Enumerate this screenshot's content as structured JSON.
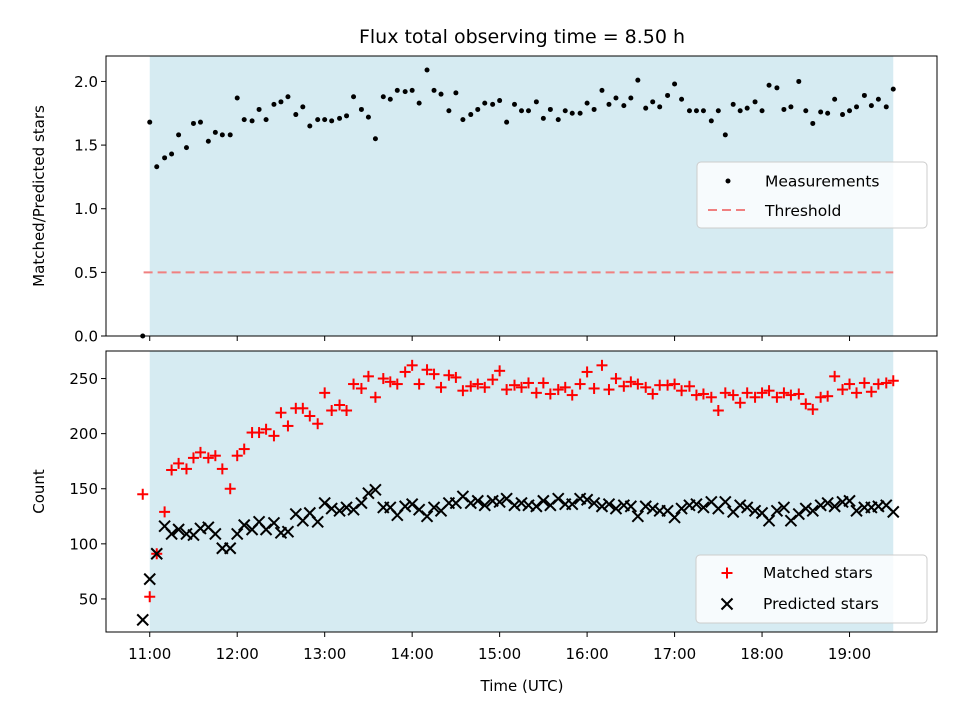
{
  "figure": {
    "title": "Flux total observing time = 8.50 h",
    "xlabel": "Time (UTC)",
    "x_ticks": [
      "11:00",
      "12:00",
      "13:00",
      "14:00",
      "15:00",
      "16:00",
      "17:00",
      "18:00",
      "19:00"
    ]
  },
  "colors": {
    "span": "#add8e6",
    "measurement": "#000000",
    "threshold": "#f08080",
    "matched": "#ff0000",
    "predicted": "#000000"
  },
  "chart_data": [
    {
      "type": "scatter",
      "panel": "top",
      "ylabel": "Matched/Predicted stars",
      "xlim": [
        10.5,
        20.0
      ],
      "ylim": [
        0.0,
        2.2
      ],
      "y_ticks": [
        "0.0",
        "0.5",
        "1.0",
        "1.5",
        "2.0"
      ],
      "shaded_span": [
        11.0,
        19.5
      ],
      "threshold": {
        "name": "Threshold",
        "y": 0.5,
        "x_range": [
          10.93,
          19.5
        ]
      },
      "legend": {
        "placement": "center-right",
        "entries": [
          "Measurements",
          "Threshold"
        ]
      },
      "series": [
        {
          "name": "Measurements",
          "x": [
            10.92,
            11.0,
            11.08,
            11.17,
            11.25,
            11.33,
            11.42,
            11.5,
            11.58,
            11.67,
            11.75,
            11.83,
            11.92,
            12.0,
            12.08,
            12.17,
            12.25,
            12.33,
            12.42,
            12.5,
            12.58,
            12.67,
            12.75,
            12.83,
            12.92,
            13.0,
            13.08,
            13.17,
            13.25,
            13.33,
            13.42,
            13.5,
            13.58,
            13.67,
            13.75,
            13.83,
            13.92,
            14.0,
            14.08,
            14.17,
            14.25,
            14.33,
            14.42,
            14.5,
            14.58,
            14.67,
            14.75,
            14.83,
            14.92,
            15.0,
            15.08,
            15.17,
            15.25,
            15.33,
            15.42,
            15.5,
            15.58,
            15.67,
            15.75,
            15.83,
            15.92,
            16.0,
            16.08,
            16.17,
            16.25,
            16.33,
            16.42,
            16.5,
            16.58,
            16.67,
            16.75,
            16.83,
            16.92,
            17.0,
            17.08,
            17.17,
            17.25,
            17.33,
            17.42,
            17.5,
            17.58,
            17.67,
            17.75,
            17.83,
            17.92,
            18.0,
            18.08,
            18.17,
            18.25,
            18.33,
            18.42,
            18.5,
            18.58,
            18.67,
            18.75,
            18.83,
            18.92,
            19.0,
            19.08,
            19.17,
            19.25,
            19.33,
            19.42,
            19.5
          ],
          "y": [
            0.0,
            1.68,
            1.33,
            1.4,
            1.43,
            1.58,
            1.48,
            1.67,
            1.68,
            1.53,
            1.6,
            1.58,
            1.58,
            1.87,
            1.7,
            1.69,
            1.78,
            1.7,
            1.82,
            1.84,
            1.88,
            1.74,
            1.8,
            1.65,
            1.7,
            1.7,
            1.69,
            1.71,
            1.73,
            1.88,
            1.78,
            1.72,
            1.55,
            1.88,
            1.86,
            1.93,
            1.92,
            1.93,
            1.83,
            2.09,
            1.93,
            1.9,
            1.77,
            1.91,
            1.7,
            1.74,
            1.78,
            1.83,
            1.82,
            1.85,
            1.68,
            1.82,
            1.77,
            1.77,
            1.84,
            1.71,
            1.78,
            1.7,
            1.77,
            1.75,
            1.75,
            1.83,
            1.78,
            1.93,
            1.82,
            1.87,
            1.81,
            1.87,
            2.01,
            1.79,
            1.84,
            1.8,
            1.89,
            1.98,
            1.86,
            1.77,
            1.77,
            1.77,
            1.69,
            1.77,
            1.58,
            1.82,
            1.77,
            1.79,
            1.84,
            1.77,
            1.97,
            1.95,
            1.78,
            1.8,
            2.0,
            1.77,
            1.67,
            1.76,
            1.75,
            1.86,
            1.74,
            1.77,
            1.8,
            1.89,
            1.81,
            1.86,
            1.8,
            1.94
          ]
        }
      ]
    },
    {
      "type": "scatter",
      "panel": "bottom",
      "ylabel": "Count",
      "xlim": [
        10.5,
        20.0
      ],
      "ylim": [
        20,
        275
      ],
      "y_ticks": [
        "50",
        "100",
        "150",
        "200",
        "250"
      ],
      "shaded_span": [
        11.0,
        19.5
      ],
      "legend": {
        "placement": "bottom-right",
        "entries": [
          "Matched stars",
          "Predicted stars"
        ]
      },
      "series": [
        {
          "name": "Matched stars",
          "marker": "plus",
          "x": [
            10.92,
            11.0,
            11.08,
            11.17,
            11.25,
            11.33,
            11.42,
            11.5,
            11.58,
            11.67,
            11.75,
            11.83,
            11.92,
            12.0,
            12.08,
            12.17,
            12.25,
            12.33,
            12.42,
            12.5,
            12.58,
            12.67,
            12.75,
            12.83,
            12.92,
            13.0,
            13.08,
            13.17,
            13.25,
            13.33,
            13.42,
            13.5,
            13.58,
            13.67,
            13.75,
            13.83,
            13.92,
            14.0,
            14.08,
            14.17,
            14.25,
            14.33,
            14.42,
            14.5,
            14.58,
            14.67,
            14.75,
            14.83,
            14.92,
            15.0,
            15.08,
            15.17,
            15.25,
            15.33,
            15.42,
            15.5,
            15.58,
            15.67,
            15.75,
            15.83,
            15.92,
            16.0,
            16.08,
            16.17,
            16.25,
            16.33,
            16.42,
            16.5,
            16.58,
            16.67,
            16.75,
            16.83,
            16.92,
            17.0,
            17.08,
            17.17,
            17.25,
            17.33,
            17.42,
            17.5,
            17.58,
            17.67,
            17.75,
            17.83,
            17.92,
            18.0,
            18.08,
            18.17,
            18.25,
            18.33,
            18.42,
            18.5,
            18.58,
            18.67,
            18.75,
            18.83,
            18.92,
            19.0,
            19.08,
            19.17,
            19.25,
            19.33,
            19.42,
            19.5
          ],
          "y": [
            145,
            52,
            91,
            129,
            167,
            173,
            168,
            178,
            183,
            178,
            180,
            168,
            150,
            180,
            186,
            201,
            201,
            204,
            198,
            219,
            207,
            223,
            223,
            216,
            209,
            237,
            221,
            226,
            221,
            245,
            241,
            252,
            233,
            250,
            247,
            245,
            256,
            262,
            245,
            258,
            254,
            242,
            253,
            251,
            239,
            243,
            245,
            242,
            249,
            257,
            240,
            244,
            242,
            246,
            237,
            246,
            236,
            240,
            242,
            235,
            245,
            256,
            241,
            262,
            240,
            250,
            243,
            247,
            245,
            242,
            236,
            244,
            244,
            245,
            239,
            243,
            235,
            236,
            233,
            221,
            237,
            235,
            228,
            237,
            233,
            237,
            239,
            233,
            237,
            235,
            236,
            227,
            222,
            233,
            234,
            252,
            240,
            245,
            237,
            246,
            238,
            245,
            246,
            248
          ]
        },
        {
          "name": "Predicted stars",
          "marker": "x",
          "x": [
            10.92,
            11.0,
            11.08,
            11.17,
            11.25,
            11.33,
            11.42,
            11.5,
            11.58,
            11.67,
            11.75,
            11.83,
            11.92,
            12.0,
            12.08,
            12.17,
            12.25,
            12.33,
            12.42,
            12.5,
            12.58,
            12.67,
            12.75,
            12.83,
            12.92,
            13.0,
            13.08,
            13.17,
            13.25,
            13.33,
            13.42,
            13.5,
            13.58,
            13.67,
            13.75,
            13.83,
            13.92,
            14.0,
            14.08,
            14.17,
            14.25,
            14.33,
            14.42,
            14.5,
            14.58,
            14.67,
            14.75,
            14.83,
            14.92,
            15.0,
            15.08,
            15.17,
            15.25,
            15.33,
            15.42,
            15.5,
            15.58,
            15.67,
            15.75,
            15.83,
            15.92,
            16.0,
            16.08,
            16.17,
            16.25,
            16.33,
            16.42,
            16.5,
            16.58,
            16.67,
            16.75,
            16.83,
            16.92,
            17.0,
            17.08,
            17.17,
            17.25,
            17.33,
            17.42,
            17.5,
            17.58,
            17.67,
            17.75,
            17.83,
            17.92,
            18.0,
            18.08,
            18.17,
            18.25,
            18.33,
            18.42,
            18.5,
            18.58,
            18.67,
            18.75,
            18.83,
            18.92,
            19.0,
            19.08,
            19.17,
            19.25,
            19.33,
            19.42,
            19.5
          ],
          "y": [
            31,
            68,
            91,
            116,
            109,
            113,
            109,
            108,
            114,
            115,
            109,
            96,
            96,
            109,
            117,
            113,
            120,
            113,
            119,
            110,
            111,
            127,
            121,
            128,
            120,
            137,
            132,
            130,
            133,
            131,
            137,
            146,
            149,
            133,
            133,
            126,
            134,
            136,
            131,
            125,
            133,
            130,
            137,
            137,
            143,
            137,
            139,
            135,
            139,
            138,
            141,
            135,
            137,
            135,
            134,
            139,
            135,
            141,
            136,
            136,
            141,
            140,
            137,
            134,
            136,
            132,
            135,
            134,
            125,
            134,
            132,
            130,
            130,
            124,
            132,
            135,
            136,
            133,
            138,
            132,
            138,
            129,
            135,
            133,
            130,
            128,
            121,
            130,
            133,
            121,
            127,
            132,
            130,
            135,
            137,
            134,
            138,
            139,
            130,
            133,
            133,
            134,
            135,
            129
          ]
        }
      ]
    }
  ]
}
